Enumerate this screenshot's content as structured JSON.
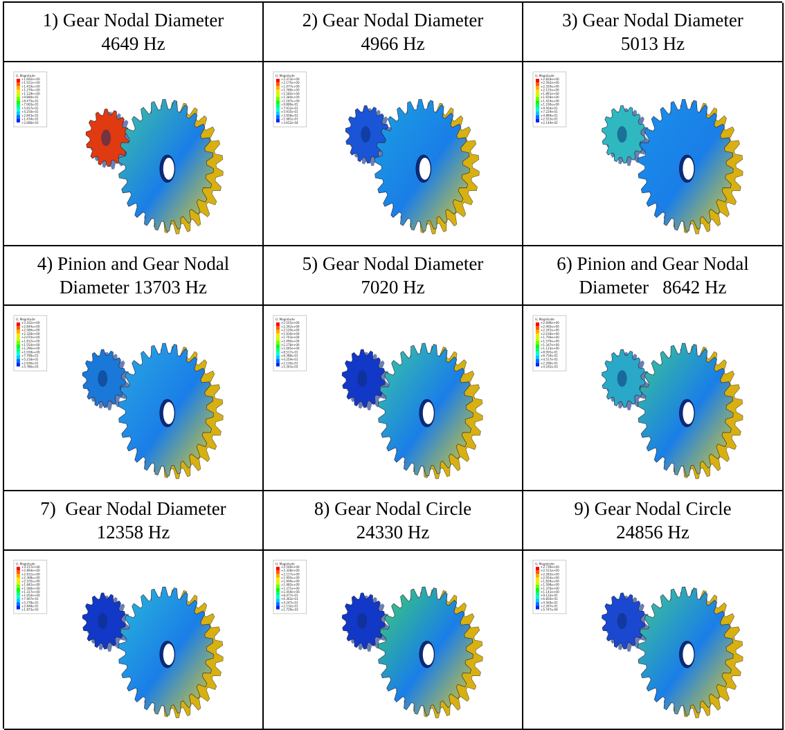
{
  "cells": [
    {
      "title_line1": "1) Gear Nodal Diameter",
      "title_line2": "4649 Hz",
      "legend_title": "U, Magnitude",
      "legend_values": [
        "+1.692e+00",
        "+1.551e+00",
        "+1.410e+00",
        "+1.270e+00",
        "+1.129e+00",
        "+9.880e-01",
        "+8.475e-01",
        "+7.065e-01",
        "+5.657e-01",
        "+4.250e-01",
        "+2.843e-01",
        "+1.434e-01",
        "+2.686e-03"
      ],
      "pinion_color": "#e03a10",
      "gear_color": "#3fc4a0"
    },
    {
      "title_line1": "2) Gear Nodal Diameter",
      "title_line2": "4966 Hz",
      "legend_title": "U, Magnitude",
      "legend_values": [
        "+2.373e+00",
        "+2.175e+00",
        "+1.977e+00",
        "+1.780e+00",
        "+1.582e+00",
        "+1.384e+00",
        "+1.187e+00",
        "+9.889e-01",
        "+7.912e-01",
        "+5.935e-01",
        "+3.958e-01",
        "+1.981e-01",
        "+3.652e-04"
      ],
      "pinion_color": "#1a55d8",
      "gear_color": "#1aa0e0"
    },
    {
      "title_line1": "3) Gear Nodal Diameter",
      "title_line2": "5013 Hz",
      "legend_title": "U, Magnitude",
      "legend_values": [
        "+2.826e+00",
        "+2.592e+00",
        "+2.359e+00",
        "+2.125e+00",
        "+1.891e+00",
        "+1.658e+00",
        "+1.424e+00",
        "+1.190e+00",
        "+9.564e-01",
        "+7.229e-01",
        "+4.889e-01",
        "+2.553e-01",
        "+2.149e-02"
      ],
      "pinion_color": "#2fb8c0",
      "gear_color": "#1a90e8"
    },
    {
      "title_line1": "4) Pinion and Gear Nodal",
      "title_line2": "Diameter 13703 Hz",
      "legend_title": "U, Magnitude",
      "legend_values": [
        "+3.102e+00",
        "+2.844e+00",
        "+2.586e+00",
        "+2.328e+00",
        "+2.070e+00",
        "+1.812e+00",
        "+1.554e+00",
        "+1.296e+00",
        "+1.038e+00",
        "+7.798e-01",
        "+5.218e-01",
        "+2.636e-01",
        "+5.786e-03"
      ],
      "pinion_color": "#1a78d8",
      "gear_color": "#2aa8e0"
    },
    {
      "title_line1": "5) Gear Nodal Diameter",
      "title_line2": "7020 Hz",
      "legend_title": "U, Magnitude",
      "legend_values": [
        "+2.555e+00",
        "+2.342e+00",
        "+2.129e+00",
        "+1.916e+00",
        "+1.703e+00",
        "+1.490e+00",
        "+1.278e+00",
        "+1.065e+00",
        "+8.517e-01",
        "+6.388e-01",
        "+4.259e-01",
        "+2.130e-01",
        "+5.343e-05"
      ],
      "pinion_color": "#1238c8",
      "gear_color": "#3ac8a0"
    },
    {
      "title_line1": "6) Pinion and Gear Nodal",
      "title_line2": "Diameter   8642 Hz",
      "legend_title": "U, Magnitude",
      "legend_values": [
        "+2.689e+00",
        "+2.465e+00",
        "+2.241e+00",
        "+2.018e+00",
        "+1.794e+00",
        "+1.570e+00",
        "+1.347e+00",
        "+1.123e+00",
        "+8.991e-01",
        "+6.754e-01",
        "+4.517e-01",
        "+2.280e-01",
        "+4.242e-03"
      ],
      "pinion_color": "#2aa8c8",
      "gear_color": "#3cc890"
    },
    {
      "title_line1": "7)  Gear Nodal Diameter",
      "title_line2": "12358 Hz",
      "legend_title": "U, Magnitude",
      "legend_values": [
        "+3.157e+00",
        "+2.894e+00",
        "+2.631e+00",
        "+2.368e+00",
        "+2.105e+00",
        "+1.842e+00",
        "+1.580e+00",
        "+1.317e+00",
        "+1.054e+00",
        "+7.907e-01",
        "+5.278e-01",
        "+2.648e-01",
        "+1.873e-03"
      ],
      "pinion_color": "#1238c8",
      "gear_color": "#2ab8d8"
    },
    {
      "title_line1": "8) Gear Nodal Circle",
      "title_line2": "24330 Hz",
      "legend_title": "U, Magnitude",
      "legend_values": [
        "+2.540e+00",
        "+2.328e+00",
        "+2.117e+00",
        "+1.905e+00",
        "+1.694e+00",
        "+1.482e+00",
        "+1.271e+00",
        "+1.059e+00",
        "+8.477e-01",
        "+6.362e-01",
        "+4.247e-01",
        "+2.132e-01",
        "+1.729e-03"
      ],
      "pinion_color": "#1238c8",
      "gear_color": "#3cd070"
    },
    {
      "title_line1": "9) Gear Nodal Circle",
      "title_line2": "24856 Hz",
      "legend_title": "U, Magnitude",
      "legend_values": [
        "+2.739e+00",
        "+2.511e+00",
        "+2.283e+00",
        "+2.054e+00",
        "+1.826e+00",
        "+1.598e+00",
        "+1.370e+00",
        "+1.141e+00",
        "+9.132e-01",
        "+6.850e-01",
        "+4.569e-01",
        "+2.287e-01",
        "+5.747e-04"
      ],
      "pinion_color": "#1a48d0",
      "gear_color": "#40c890"
    }
  ],
  "contour_colors": [
    "#ff0000",
    "#ff5a00",
    "#ffaa00",
    "#ffe400",
    "#c8ff00",
    "#6eff00",
    "#00ff00",
    "#00ff72",
    "#00ffd0",
    "#00c8ff",
    "#0070ff",
    "#0020ff"
  ]
}
